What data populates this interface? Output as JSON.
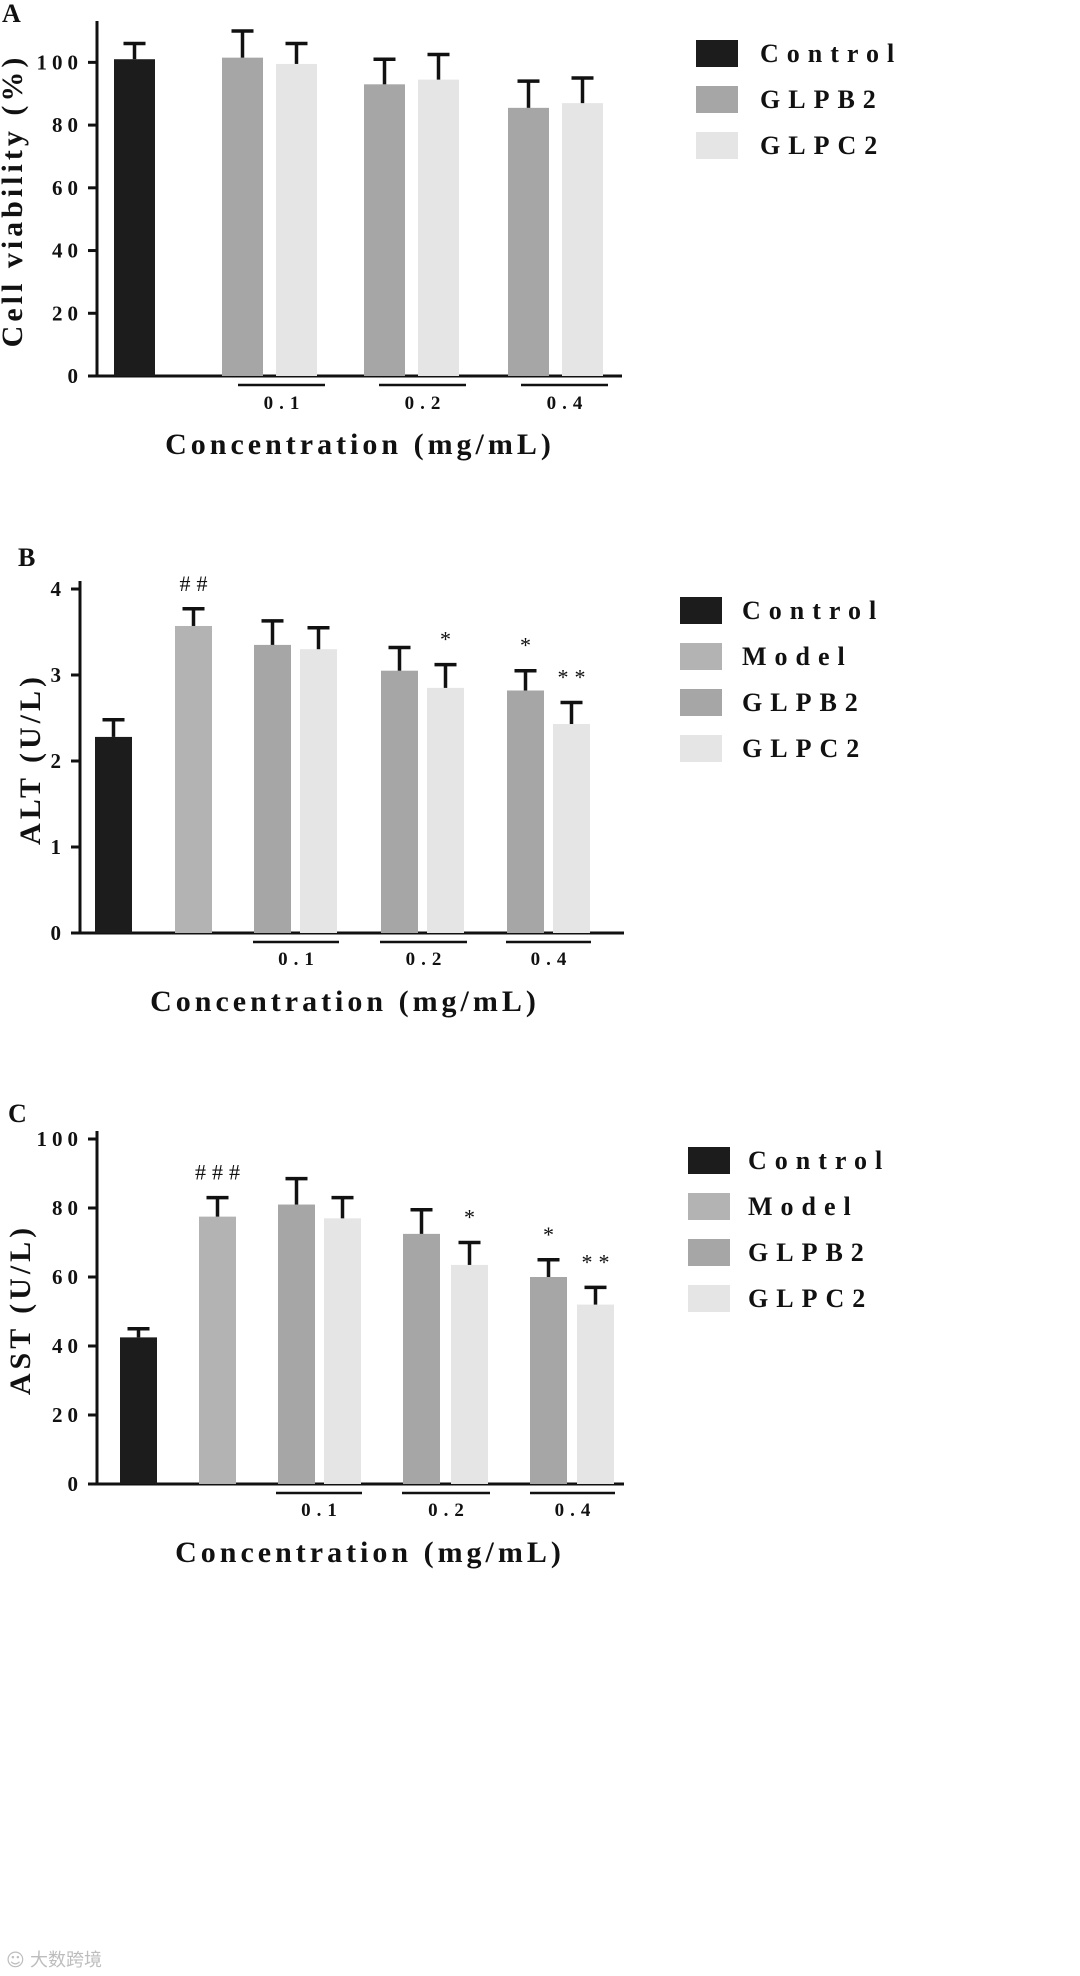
{
  "chart_data": [
    {
      "id": "A",
      "type": "bar",
      "panel_label": "A",
      "ylabel": "Cell viability (%)",
      "xlabel": "Concentration (mg/mL)",
      "ylim": [
        0,
        110
      ],
      "yticks": [
        0,
        20,
        40,
        60,
        80,
        100
      ],
      "legend": [
        "Control",
        "GLPB2",
        "GLPC2"
      ],
      "legend_position": "top-right",
      "groups": [
        "0.1",
        "0.2",
        "0.4"
      ],
      "bars": [
        {
          "series": "Control",
          "group": "",
          "value": 101,
          "error": 5,
          "mark": ""
        },
        {
          "series": "GLPB2",
          "group": "0.1",
          "value": 101.5,
          "error": 8.5,
          "mark": ""
        },
        {
          "series": "GLPC2",
          "group": "0.1",
          "value": 99.5,
          "error": 6.5,
          "mark": ""
        },
        {
          "series": "GLPB2",
          "group": "0.2",
          "value": 93,
          "error": 8,
          "mark": ""
        },
        {
          "series": "GLPC2",
          "group": "0.2",
          "value": 94.5,
          "error": 8,
          "mark": ""
        },
        {
          "series": "GLPB2",
          "group": "0.4",
          "value": 85.5,
          "error": 8.5,
          "mark": ""
        },
        {
          "series": "GLPC2",
          "group": "0.4",
          "value": 87,
          "error": 8,
          "mark": ""
        }
      ]
    },
    {
      "id": "B",
      "type": "bar",
      "panel_label": "B",
      "ylabel": "ALT (U/L)",
      "xlabel": "Concentration (mg/mL)",
      "ylim": [
        0,
        4
      ],
      "yticks": [
        0,
        1,
        2,
        3,
        4
      ],
      "legend": [
        "Control",
        "Model",
        "GLPB2",
        "GLPC2"
      ],
      "legend_position": "top-right",
      "groups": [
        "0.1",
        "0.2",
        "0.4"
      ],
      "bars": [
        {
          "series": "Control",
          "group": "",
          "value": 2.28,
          "error": 0.2,
          "mark": ""
        },
        {
          "series": "Model",
          "group": "",
          "value": 3.57,
          "error": 0.2,
          "mark": "##"
        },
        {
          "series": "GLPB2",
          "group": "0.1",
          "value": 3.35,
          "error": 0.28,
          "mark": ""
        },
        {
          "series": "GLPC2",
          "group": "0.1",
          "value": 3.3,
          "error": 0.25,
          "mark": ""
        },
        {
          "series": "GLPB2",
          "group": "0.2",
          "value": 3.05,
          "error": 0.27,
          "mark": ""
        },
        {
          "series": "GLPC2",
          "group": "0.2",
          "value": 2.85,
          "error": 0.27,
          "mark": "*"
        },
        {
          "series": "GLPB2",
          "group": "0.4",
          "value": 2.82,
          "error": 0.23,
          "mark": "*"
        },
        {
          "series": "GLPC2",
          "group": "0.4",
          "value": 2.43,
          "error": 0.25,
          "mark": "**"
        }
      ]
    },
    {
      "id": "C",
      "type": "bar",
      "panel_label": "C",
      "ylabel": "AST (U/L)",
      "xlabel": "Concentration (mg/mL)",
      "ylim": [
        0,
        100
      ],
      "yticks": [
        0,
        20,
        40,
        60,
        80,
        100
      ],
      "legend": [
        "Control",
        "Model",
        "GLPB2",
        "GLPC2"
      ],
      "legend_position": "top-right",
      "groups": [
        "0.1",
        "0.2",
        "0.4"
      ],
      "bars": [
        {
          "series": "Control",
          "group": "",
          "value": 42.5,
          "error": 2.5,
          "mark": ""
        },
        {
          "series": "Model",
          "group": "",
          "value": 77.5,
          "error": 5.5,
          "mark": "###"
        },
        {
          "series": "GLPB2",
          "group": "0.1",
          "value": 81,
          "error": 7.5,
          "mark": ""
        },
        {
          "series": "GLPC2",
          "group": "0.1",
          "value": 77,
          "error": 6,
          "mark": ""
        },
        {
          "series": "GLPB2",
          "group": "0.2",
          "value": 72.5,
          "error": 7,
          "mark": ""
        },
        {
          "series": "GLPC2",
          "group": "0.2",
          "value": 63.5,
          "error": 6.5,
          "mark": "*"
        },
        {
          "series": "GLPB2",
          "group": "0.4",
          "value": 60,
          "error": 5,
          "mark": "*"
        },
        {
          "series": "GLPC2",
          "group": "0.4",
          "value": 52,
          "error": 5,
          "mark": "**"
        }
      ]
    }
  ],
  "colors": {
    "Control": "#1c1c1c",
    "Model": "#b3b3b3",
    "GLPB2": "#a6a6a6",
    "GLPC2": "#e5e5e5"
  },
  "watermark": "大数跨境"
}
